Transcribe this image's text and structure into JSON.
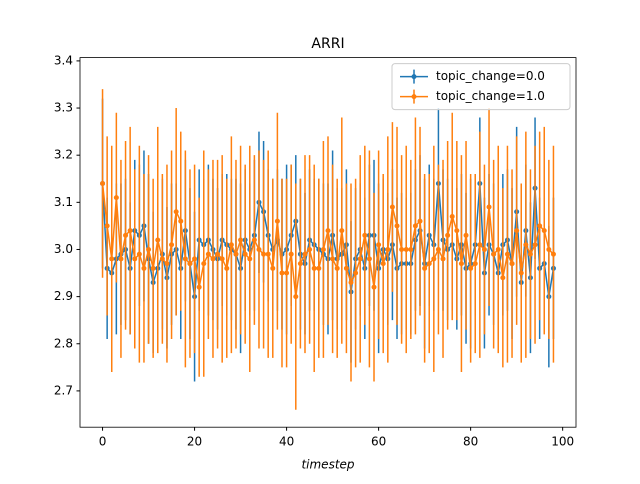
{
  "chart_data": {
    "type": "errorbar",
    "title": "ARRI",
    "xlabel": "timestep",
    "x": [
      0,
      1,
      2,
      3,
      4,
      5,
      6,
      7,
      8,
      9,
      10,
      11,
      12,
      13,
      14,
      15,
      16,
      17,
      18,
      19,
      20,
      21,
      22,
      23,
      24,
      25,
      26,
      27,
      28,
      29,
      30,
      31,
      32,
      33,
      34,
      35,
      36,
      37,
      38,
      39,
      40,
      41,
      42,
      43,
      44,
      45,
      46,
      47,
      48,
      49,
      50,
      51,
      52,
      53,
      54,
      55,
      56,
      57,
      58,
      59,
      60,
      61,
      62,
      63,
      64,
      65,
      66,
      67,
      68,
      69,
      70,
      71,
      72,
      73,
      74,
      75,
      76,
      77,
      78,
      79,
      80,
      81,
      82,
      83,
      84,
      85,
      86,
      87,
      88,
      89,
      90,
      91,
      92,
      93,
      94,
      95,
      96,
      97,
      98
    ],
    "series": [
      {
        "name": "topic_change=0.0",
        "color": "#1f77b4",
        "values": [
          3.14,
          2.96,
          2.95,
          2.98,
          2.99,
          3.0,
          2.96,
          3.04,
          3.03,
          3.05,
          2.98,
          2.93,
          2.96,
          2.99,
          2.94,
          2.99,
          3.0,
          2.96,
          3.04,
          2.97,
          2.9,
          3.02,
          3.01,
          3.02,
          3.0,
          2.98,
          3.02,
          3.01,
          3.0,
          2.99,
          2.96,
          3.02,
          3.0,
          3.03,
          3.1,
          3.08,
          3.03,
          3.0,
          3.02,
          2.99,
          3.0,
          3.03,
          3.06,
          2.99,
          2.97,
          3.02,
          3.01,
          3.0,
          2.99,
          2.98,
          3.03,
          2.98,
          2.99,
          3.01,
          2.91,
          2.98,
          3.0,
          2.96,
          3.03,
          3.03,
          2.96,
          3.0,
          2.98,
          3.01,
          2.96,
          2.97,
          2.97,
          2.97,
          3.02,
          3.04,
          2.97,
          3.03,
          3.01,
          3.14,
          3.02,
          3.0,
          3.01,
          2.98,
          3.01,
          2.96,
          2.97,
          3.01,
          3.14,
          2.95,
          3.01,
          2.99,
          2.95,
          3.01,
          3.02,
          2.97,
          3.08,
          2.93,
          3.04,
          2.94,
          3.13,
          2.96,
          2.97,
          2.9,
          2.96
        ],
        "errors": [
          0.18,
          0.15,
          0.14,
          0.16,
          0.15,
          0.15,
          0.14,
          0.15,
          0.15,
          0.16,
          0.18,
          0.15,
          0.14,
          0.16,
          0.15,
          0.15,
          0.14,
          0.15,
          0.15,
          0.16,
          0.18,
          0.15,
          0.14,
          0.16,
          0.15,
          0.15,
          0.14,
          0.15,
          0.15,
          0.16,
          0.18,
          0.15,
          0.14,
          0.16,
          0.15,
          0.15,
          0.14,
          0.15,
          0.15,
          0.16,
          0.18,
          0.15,
          0.14,
          0.16,
          0.15,
          0.15,
          0.14,
          0.15,
          0.15,
          0.16,
          0.18,
          0.15,
          0.14,
          0.16,
          0.15,
          0.15,
          0.14,
          0.15,
          0.15,
          0.16,
          0.18,
          0.15,
          0.14,
          0.16,
          0.15,
          0.15,
          0.14,
          0.15,
          0.15,
          0.16,
          0.18,
          0.15,
          0.14,
          0.16,
          0.15,
          0.15,
          0.14,
          0.15,
          0.15,
          0.16,
          0.18,
          0.15,
          0.14,
          0.16,
          0.15,
          0.15,
          0.14,
          0.15,
          0.15,
          0.16,
          0.18,
          0.15,
          0.14,
          0.16,
          0.15,
          0.15,
          0.14,
          0.15,
          0.15
        ]
      },
      {
        "name": "topic_change=1.0",
        "color": "#ff7f0e",
        "values": [
          3.14,
          3.05,
          2.98,
          3.11,
          2.98,
          3.03,
          3.04,
          2.98,
          2.99,
          2.96,
          3.0,
          2.96,
          3.02,
          2.98,
          2.97,
          3.01,
          3.08,
          3.06,
          2.98,
          2.97,
          2.98,
          2.92,
          2.97,
          2.99,
          2.98,
          2.99,
          2.98,
          2.96,
          3.01,
          2.99,
          3.02,
          2.99,
          2.98,
          3.02,
          3.0,
          2.99,
          2.99,
          2.96,
          3.06,
          2.95,
          2.95,
          2.99,
          2.9,
          2.97,
          2.99,
          3.0,
          2.96,
          2.96,
          3.0,
          3.04,
          2.98,
          2.96,
          3.04,
          2.96,
          2.93,
          2.95,
          2.98,
          3.03,
          2.98,
          2.92,
          3.01,
          2.97,
          3.0,
          3.09,
          3.05,
          3.0,
          3.0,
          3.0,
          3.05,
          3.06,
          2.96,
          2.97,
          2.98,
          3.0,
          2.98,
          3.03,
          3.07,
          3.04,
          2.97,
          3.03,
          2.96,
          2.97,
          3.01,
          3.0,
          3.09,
          2.99,
          3.0,
          2.94,
          2.99,
          2.97,
          3.04,
          2.95,
          3.01,
          2.99,
          3.01,
          3.05,
          3.04,
          3.0,
          2.99
        ],
        "errors": [
          0.2,
          0.19,
          0.24,
          0.18,
          0.21,
          0.2,
          0.22,
          0.19,
          0.23,
          0.2,
          0.2,
          0.19,
          0.24,
          0.18,
          0.21,
          0.2,
          0.22,
          0.19,
          0.23,
          0.2,
          0.2,
          0.19,
          0.24,
          0.18,
          0.21,
          0.2,
          0.22,
          0.19,
          0.23,
          0.2,
          0.2,
          0.19,
          0.24,
          0.18,
          0.21,
          0.2,
          0.22,
          0.19,
          0.23,
          0.2,
          0.2,
          0.19,
          0.24,
          0.18,
          0.21,
          0.2,
          0.22,
          0.19,
          0.23,
          0.2,
          0.2,
          0.19,
          0.24,
          0.18,
          0.21,
          0.2,
          0.22,
          0.19,
          0.23,
          0.2,
          0.2,
          0.19,
          0.24,
          0.18,
          0.21,
          0.2,
          0.22,
          0.19,
          0.23,
          0.2,
          0.2,
          0.19,
          0.24,
          0.18,
          0.21,
          0.2,
          0.22,
          0.19,
          0.23,
          0.2,
          0.2,
          0.19,
          0.24,
          0.18,
          0.21,
          0.2,
          0.22,
          0.19,
          0.23,
          0.2,
          0.2,
          0.19,
          0.24,
          0.18,
          0.21,
          0.2,
          0.22,
          0.19,
          0.23
        ]
      }
    ],
    "xlim": [
      -4.9,
      102.9
    ],
    "xticks": [
      0,
      20,
      40,
      60,
      80,
      100
    ],
    "ylim": [
      2.623,
      3.407
    ],
    "yticks": [
      2.7,
      2.8,
      2.9,
      {
        "value": 3,
        "label": "3.0"
      },
      3.1,
      3.2,
      3.3,
      3.4
    ],
    "legend": "upper right"
  }
}
